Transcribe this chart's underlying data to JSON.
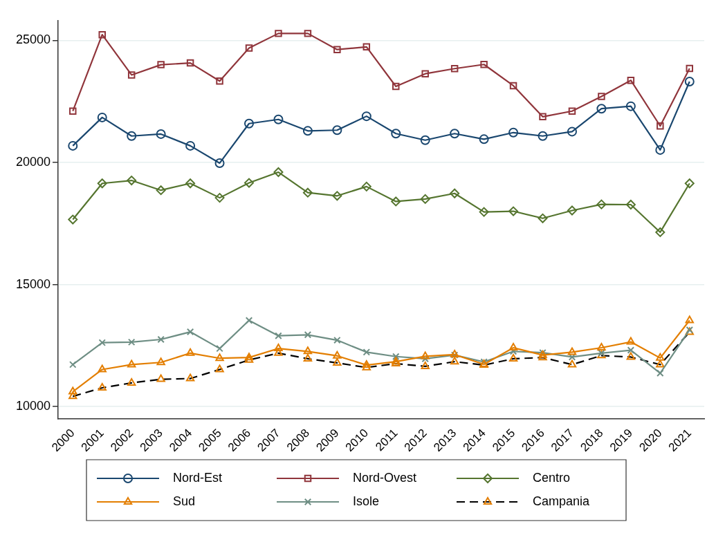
{
  "chart_data": {
    "type": "line",
    "categories": [
      "2000",
      "2001",
      "2002",
      "2003",
      "2004",
      "2005",
      "2006",
      "2007",
      "2008",
      "2009",
      "2010",
      "2011",
      "2012",
      "2013",
      "2014",
      "2015",
      "2016",
      "2017",
      "2018",
      "2019",
      "2020",
      "2021"
    ],
    "series": [
      {
        "name": "Nord-Est",
        "color": "#1a476f",
        "marker": "circle",
        "values": [
          20680,
          21840,
          21080,
          21160,
          20680,
          19970,
          21590,
          21760,
          21290,
          21320,
          21890,
          21180,
          20910,
          21180,
          20950,
          21220,
          21080,
          21260,
          22200,
          22300,
          20510,
          23310
        ]
      },
      {
        "name": "Nord-Ovest",
        "color": "#90353b",
        "marker": "square",
        "values": [
          22100,
          25230,
          23580,
          24000,
          24070,
          23330,
          24680,
          25280,
          25280,
          24620,
          24730,
          23110,
          23630,
          23840,
          24010,
          23140,
          21870,
          22100,
          22700,
          23360,
          21490,
          23850
        ]
      },
      {
        "name": "Centro",
        "color": "#55752f",
        "marker": "diamond",
        "values": [
          17660,
          19140,
          19260,
          18860,
          19140,
          18550,
          19160,
          19600,
          18760,
          18630,
          19010,
          18400,
          18500,
          18730,
          17970,
          18000,
          17710,
          18030,
          18280,
          18270,
          17140,
          19140
        ]
      },
      {
        "name": "Sud",
        "color": "#e37e00",
        "marker": "triangle",
        "values": [
          10610,
          11520,
          11720,
          11810,
          12190,
          11980,
          12010,
          12380,
          12260,
          12080,
          11700,
          11840,
          12060,
          12130,
          11730,
          12410,
          12110,
          12230,
          12410,
          12650,
          11990,
          13530
        ]
      },
      {
        "name": "Isole",
        "color": "#6e8e84",
        "marker": "cross",
        "values": [
          11720,
          12620,
          12640,
          12750,
          13060,
          12380,
          13530,
          12900,
          12940,
          12720,
          12230,
          12050,
          11960,
          12110,
          11830,
          12260,
          12210,
          12030,
          12190,
          12310,
          11370,
          13140
        ]
      },
      {
        "name": "Campania",
        "color": "#000000",
        "marker": "triangle",
        "line_style": "dashed",
        "colors": [
          "#e37e00",
          "#e37e00",
          "#e37e00",
          "#e37e00",
          "#e37e00",
          "#e37e00",
          "#e37e00",
          "#e37e00",
          "#e37e00",
          "#e37e00",
          "#e37e00",
          "#e37e00",
          "#e37e00",
          "#e37e00",
          "#e37e00",
          "#e37e00",
          "#e37e00",
          "#e37e00",
          "#e37e00",
          "#e37e00",
          "#e37e00",
          "#e37e00"
        ],
        "values": [
          10420,
          10770,
          10970,
          11120,
          11150,
          11520,
          11910,
          12190,
          11960,
          11790,
          11600,
          11760,
          11650,
          11840,
          11700,
          11960,
          12010,
          11720,
          12090,
          12030,
          11720,
          13050
        ]
      }
    ],
    "ylim": [
      9500,
      25800
    ],
    "yticks": [
      10000,
      15000,
      20000,
      25000
    ],
    "grid": "y",
    "legend": "bottom"
  }
}
